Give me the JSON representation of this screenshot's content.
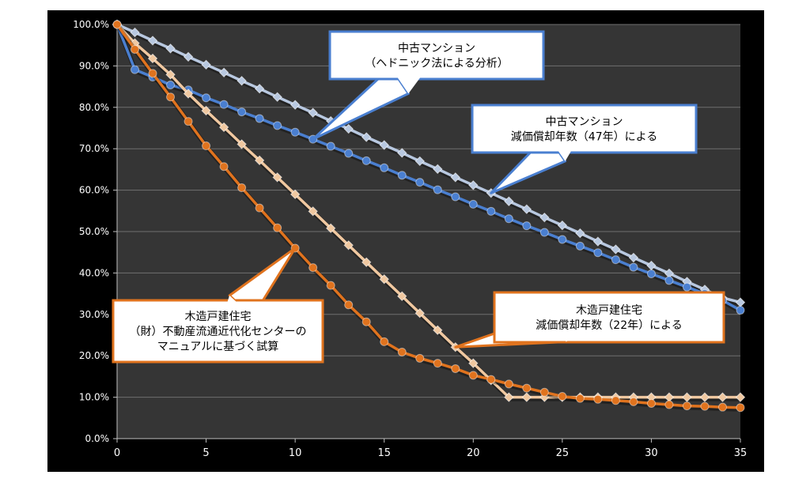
{
  "chart_data": {
    "type": "line",
    "title": "",
    "xlabel": "",
    "ylabel": "",
    "xlim": [
      0,
      35
    ],
    "ylim": [
      0,
      100
    ],
    "x_ticks": [
      0,
      5,
      10,
      15,
      20,
      25,
      30,
      35
    ],
    "y_ticks": [
      0,
      10,
      20,
      30,
      40,
      50,
      60,
      70,
      80,
      90,
      100
    ],
    "y_tick_labels": [
      "0.0%",
      "10.0%",
      "20.0%",
      "30.0%",
      "40.0%",
      "50.0%",
      "60.0%",
      "70.0%",
      "80.0%",
      "90.0%",
      "100.0%"
    ],
    "grid": true,
    "background": "#353535",
    "x": [
      0,
      1,
      2,
      3,
      4,
      5,
      6,
      7,
      8,
      9,
      10,
      11,
      12,
      13,
      14,
      15,
      16,
      17,
      18,
      19,
      20,
      21,
      22,
      23,
      24,
      25,
      26,
      27,
      28,
      29,
      30,
      31,
      32,
      33,
      34,
      35
    ],
    "series": [
      {
        "marker": "diamond",
        "color": "#b8c8e0",
        "values": [
          100,
          98.1,
          96.1,
          94.2,
          92.2,
          90.3,
          88.4,
          86.4,
          84.5,
          82.5,
          80.6,
          78.7,
          76.7,
          74.8,
          72.8,
          70.9,
          69,
          67,
          65.1,
          63.1,
          61.2,
          59.3,
          57.3,
          55.4,
          53.4,
          51.5,
          49.6,
          47.6,
          45.7,
          43.7,
          41.8,
          39.9,
          37.9,
          36,
          34,
          32.9
        ]
      },
      {
        "marker": "circle",
        "color": "#4a7fd0",
        "values": [
          100,
          89.1,
          87.3,
          85.4,
          84.2,
          82.3,
          80.7,
          78.9,
          77.3,
          75.6,
          74,
          72.3,
          70.6,
          68.9,
          67.1,
          65.4,
          63.6,
          61.9,
          60.1,
          58.4,
          56.6,
          54.9,
          53.1,
          51.4,
          49.8,
          48.1,
          46.5,
          44.9,
          43.2,
          41.4,
          39.8,
          38.2,
          36.6,
          35,
          33.4,
          31
        ]
      },
      {
        "marker": "diamond",
        "color": "#f0c8a0",
        "values": [
          100,
          95.5,
          91.8,
          87.9,
          83.3,
          79.2,
          75.2,
          71.1,
          67.2,
          63.1,
          59,
          54.9,
          50.8,
          46.7,
          42.6,
          38.5,
          34.4,
          30.3,
          26.2,
          22.1,
          18.2,
          14.1,
          10,
          10,
          10,
          10,
          10,
          10,
          10,
          10,
          10,
          10,
          10,
          10,
          10,
          10
        ]
      },
      {
        "marker": "circle",
        "color": "#e0731e",
        "values": [
          100,
          94,
          88.2,
          82.5,
          76.6,
          70.7,
          65.7,
          60.6,
          55.7,
          50.9,
          46,
          41.3,
          37,
          32.3,
          28.2,
          23.4,
          20.9,
          19.4,
          18.2,
          16.9,
          15.3,
          14.3,
          13.2,
          12.2,
          11.2,
          10.2,
          9.7,
          9.5,
          9.2,
          8.9,
          8.5,
          8.2,
          7.9,
          7.8,
          7.6,
          7.5
        ]
      }
    ],
    "annotations": [
      {
        "lines": [
          "中古マンション",
          "（ヘドニック法による分析）"
        ],
        "border": "#4a7fd0",
        "pointer": {
          "series": 1,
          "x": 11
        }
      },
      {
        "lines": [
          "中古マンション",
          "減価償却年数（47年）による"
        ],
        "border": "#4a7fd0",
        "pointer": {
          "series": 0,
          "x": 21
        }
      },
      {
        "lines": [
          "木造戸建住宅",
          "（財）不動産流通近代化センターの",
          "マニュアルに基づく試算"
        ],
        "border": "#e0731e",
        "pointer": {
          "series": 3,
          "x": 10
        }
      },
      {
        "lines": [
          "木造戸建住宅",
          "減価償却年数（22年）による"
        ],
        "border": "#e0731e",
        "pointer": {
          "series": 2,
          "x": 19
        }
      }
    ]
  }
}
